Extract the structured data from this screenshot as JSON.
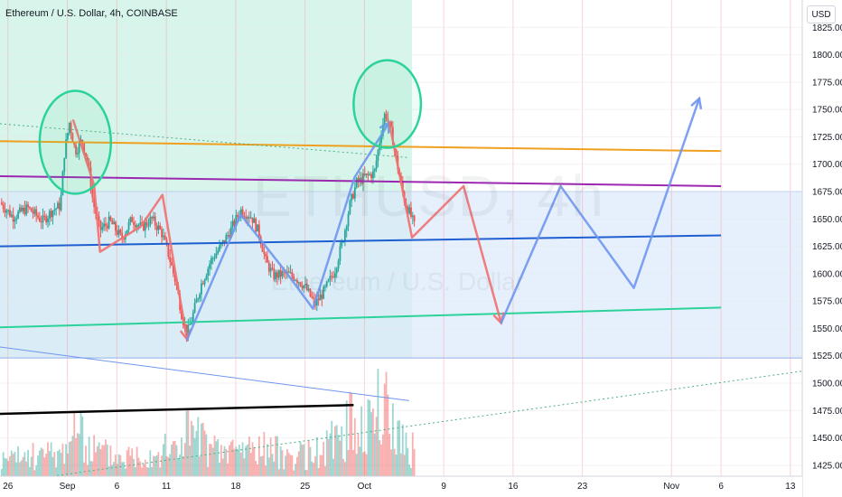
{
  "header": {
    "title": "Ethereum / U.S. Dollar, 4h, COINBASE",
    "currency": "USD"
  },
  "watermark": {
    "symbol": "ETHUSD, 4h",
    "name": "Ethereum / U.S. Dollar"
  },
  "chart_data": {
    "type": "candlestick",
    "title": "Ethereum / U.S. Dollar, 4h, COINBASE",
    "ylim": [
      1415,
      1850
    ],
    "y_ticks": [
      1825,
      1800,
      1775,
      1750,
      1725,
      1700,
      1675,
      1650,
      1625,
      1600,
      1575,
      1550,
      1525,
      1500,
      1475,
      1450,
      1425
    ],
    "x_ticks": [
      "26",
      "Sep",
      "6",
      "11",
      "18",
      "25",
      "Oct",
      "9",
      "16",
      "23",
      "Nov",
      "6",
      "13"
    ],
    "x_tick_days": [
      -5,
      1,
      6,
      11,
      18,
      25,
      31,
      39,
      46,
      53,
      62,
      67,
      74
    ],
    "x_range_days": [
      -5.8,
      75.2
    ],
    "grid": true,
    "colors": {
      "up": "#26a69a",
      "down": "#ef5350",
      "orange_line": "#f0a020",
      "purple_line": "#9c27b0",
      "blue_line": "#1e5fd1",
      "teal_line": "#2bd39b",
      "black_line": "#000000",
      "red_arrow": "#ef7070",
      "blue_arrow": "#6f96ef"
    },
    "price_path": [
      [
        -5.8,
        1665
      ],
      [
        -4.5,
        1652
      ],
      [
        -3,
        1660
      ],
      [
        -1.5,
        1648
      ],
      [
        -0.5,
        1658
      ],
      [
        0.3,
        1662
      ],
      [
        0.7,
        1710
      ],
      [
        1.2,
        1738
      ],
      [
        1.8,
        1712
      ],
      [
        2.5,
        1722
      ],
      [
        3.1,
        1700
      ],
      [
        3.6,
        1665
      ],
      [
        4.3,
        1640
      ],
      [
        5.3,
        1648
      ],
      [
        6.5,
        1632
      ],
      [
        7.5,
        1650
      ],
      [
        8.5,
        1642
      ],
      [
        9.5,
        1650
      ],
      [
        10.5,
        1638
      ],
      [
        11.2,
        1618
      ],
      [
        12.0,
        1590
      ],
      [
        12.6,
        1560
      ],
      [
        13.1,
        1545
      ],
      [
        13.6,
        1560
      ],
      [
        14.5,
        1590
      ],
      [
        15.5,
        1612
      ],
      [
        16.5,
        1625
      ],
      [
        17.5,
        1640
      ],
      [
        18.5,
        1658
      ],
      [
        19.6,
        1652
      ],
      [
        20.4,
        1636
      ],
      [
        21.0,
        1612
      ],
      [
        21.8,
        1598
      ],
      [
        23.0,
        1600
      ],
      [
        24.0,
        1597
      ],
      [
        25.0,
        1588
      ],
      [
        26.0,
        1572
      ],
      [
        27.0,
        1585
      ],
      [
        28.0,
        1603
      ],
      [
        28.8,
        1630
      ],
      [
        29.5,
        1662
      ],
      [
        30.2,
        1683
      ],
      [
        31.0,
        1688
      ],
      [
        32.0,
        1692
      ],
      [
        32.6,
        1725
      ],
      [
        33.1,
        1748
      ],
      [
        33.8,
        1726
      ],
      [
        34.3,
        1700
      ],
      [
        35.0,
        1668
      ],
      [
        35.8,
        1650
      ],
      [
        36.1,
        1642
      ]
    ],
    "volume_path": [
      [
        -5.8,
        8
      ],
      [
        -3,
        10
      ],
      [
        0.5,
        12
      ],
      [
        1.5,
        26
      ],
      [
        3,
        15
      ],
      [
        6,
        10
      ],
      [
        9,
        12
      ],
      [
        12,
        14
      ],
      [
        13,
        24
      ],
      [
        16,
        12
      ],
      [
        20,
        15
      ],
      [
        24,
        10
      ],
      [
        27,
        13
      ],
      [
        29,
        25
      ],
      [
        31,
        28
      ],
      [
        33,
        35
      ],
      [
        35,
        18
      ],
      [
        36.1,
        12
      ]
    ],
    "regions": [
      {
        "name": "green-zone",
        "x1": -5.8,
        "x2": 35.8,
        "y1": 1523,
        "y2": 1860,
        "color": "#d7f5ea"
      },
      {
        "name": "blue-zone",
        "x1": -5.8,
        "x2": 75.2,
        "y1": 1523,
        "y2": 1675,
        "color": "#dbe8fb"
      }
    ],
    "lines": [
      {
        "name": "orange-trendline",
        "color": "#f0a020",
        "width": 2,
        "points": [
          [
            -5.8,
            1721
          ],
          [
            67,
            1712
          ]
        ]
      },
      {
        "name": "purple-trendline",
        "color": "#9c27b0",
        "width": 2,
        "points": [
          [
            -5.8,
            1689
          ],
          [
            67,
            1680
          ]
        ]
      },
      {
        "name": "blue-support-line",
        "color": "#1e5fd1",
        "width": 2,
        "points": [
          [
            -5.8,
            1625
          ],
          [
            67,
            1635
          ]
        ]
      },
      {
        "name": "teal-support-line",
        "color": "#2bd39b",
        "width": 2,
        "points": [
          [
            -5.8,
            1551
          ],
          [
            67,
            1569
          ]
        ]
      },
      {
        "name": "black-volume-trendline",
        "color": "#000000",
        "width": 2.5,
        "points": [
          [
            -5.8,
            1472
          ],
          [
            29.9,
            1480
          ]
        ]
      },
      {
        "name": "blue-descending-line",
        "color": "#6f96ef",
        "width": 1,
        "points": [
          [
            -5.8,
            1533
          ],
          [
            35.5,
            1484
          ]
        ]
      },
      {
        "name": "green-dotted-descending",
        "color": "#4caf87",
        "width": 1,
        "dash": "2 3",
        "points": [
          [
            -5.8,
            1737
          ],
          [
            35.5,
            1706
          ]
        ]
      },
      {
        "name": "green-dotted-ascending",
        "color": "#4caf87",
        "width": 1,
        "dash": "2 3",
        "points": [
          [
            -0.5,
            1415
          ],
          [
            75.2,
            1511
          ]
        ]
      }
    ],
    "arrows": [
      {
        "name": "red-arrow-1",
        "color": "#ef7070",
        "points": [
          [
            1.6,
            1740
          ],
          [
            3.7,
            1681
          ],
          [
            4.3,
            1620
          ],
          [
            8.4,
            1643
          ],
          [
            10.6,
            1672
          ],
          [
            11.8,
            1607
          ],
          [
            13.1,
            1540
          ]
        ]
      },
      {
        "name": "blue-arrow-1",
        "color": "#6f96ef",
        "points": [
          [
            13.1,
            1540
          ],
          [
            18.5,
            1654
          ],
          [
            23.2,
            1600
          ],
          [
            25.8,
            1568
          ],
          [
            30.0,
            1688
          ],
          [
            33.5,
            1738
          ]
        ]
      },
      {
        "name": "red-arrow-2",
        "color": "#ef7070",
        "points": [
          [
            33.5,
            1738
          ],
          [
            35.8,
            1633
          ],
          [
            41,
            1680
          ],
          [
            44.8,
            1555
          ]
        ]
      },
      {
        "name": "blue-arrow-2",
        "color": "#6f96ef",
        "points": [
          [
            44.8,
            1555
          ],
          [
            50.8,
            1680
          ],
          [
            58.2,
            1587
          ],
          [
            64.8,
            1760
          ]
        ]
      }
    ],
    "circles": [
      {
        "name": "highlight-circle-1",
        "color": "#2bd39b",
        "cx": 1.8,
        "cy": 1720,
        "rx": 3.6,
        "ry": 47
      },
      {
        "name": "highlight-circle-2",
        "color": "#2bd39b",
        "cx": 33.3,
        "cy": 1755,
        "rx": 3.4,
        "ry": 40
      }
    ]
  }
}
